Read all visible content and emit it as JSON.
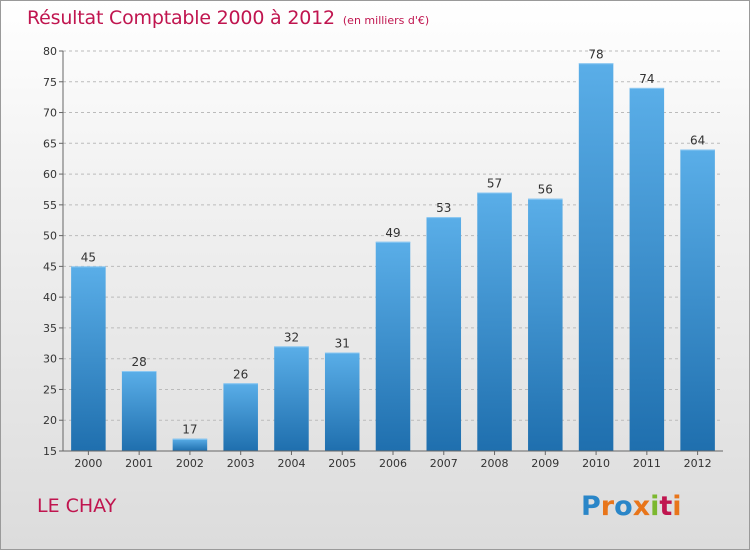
{
  "title": "Résultat Comptable 2000 à 2012",
  "subtitle": "(en milliers d'€)",
  "place": "LE CHAY",
  "logo_text": "Proxiti",
  "colors": {
    "title": "#c0154f",
    "bar_top": "#5aaee8",
    "bar_bottom": "#1f6fae",
    "grid": "#bbbbbb",
    "text": "#333333"
  },
  "chart_data": {
    "type": "bar",
    "categories": [
      "2000",
      "2001",
      "2002",
      "2003",
      "2004",
      "2005",
      "2006",
      "2007",
      "2008",
      "2009",
      "2010",
      "2011",
      "2012"
    ],
    "values": [
      45,
      28,
      17,
      26,
      32,
      31,
      49,
      53,
      57,
      56,
      78,
      74,
      64
    ],
    "data_labels": [
      "45",
      "28",
      "17",
      "26",
      "32",
      "31",
      "49",
      "53",
      "57",
      "56",
      "78",
      "74",
      "64"
    ],
    "title": "Résultat Comptable 2000 à 2012",
    "xlabel": "",
    "ylabel": "",
    "ylim": [
      15,
      80
    ],
    "yticks": [
      15,
      20,
      25,
      30,
      35,
      40,
      45,
      50,
      55,
      60,
      65,
      70,
      75,
      80
    ],
    "grid": "horizontal-dashed",
    "legend": "none"
  }
}
